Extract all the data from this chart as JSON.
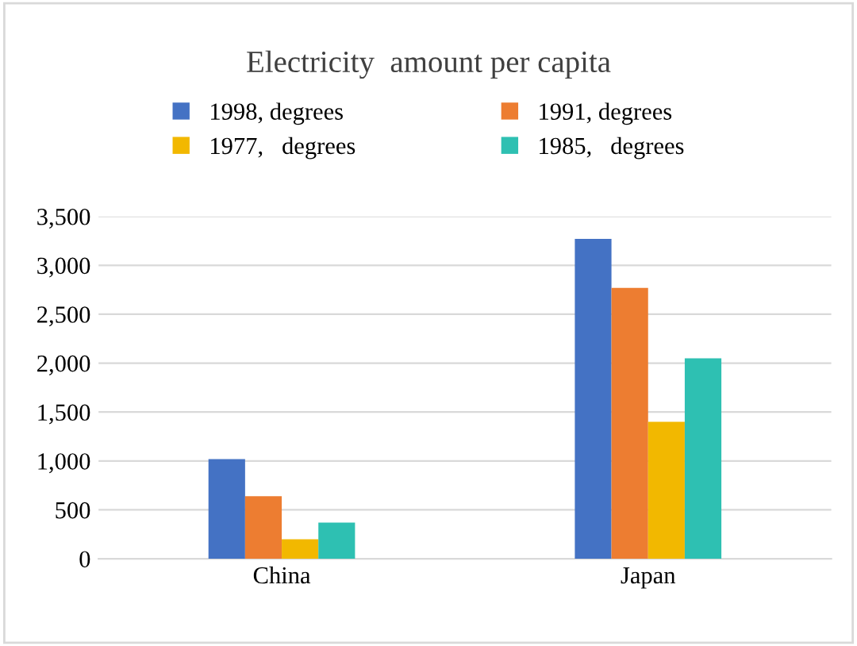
{
  "chart_data": {
    "type": "bar",
    "title": "Electricity  amount per capita",
    "categories": [
      "China",
      "Japan"
    ],
    "series": [
      {
        "name": "1998, degrees",
        "color": "#4472c4",
        "values": [
          1020,
          3270
        ]
      },
      {
        "name": "1991, degrees",
        "color": "#ed7d31",
        "values": [
          640,
          2770
        ]
      },
      {
        "name": "1977,   degrees",
        "color": "#f2b800",
        "values": [
          200,
          1400
        ]
      },
      {
        "name": "1985,   degrees",
        "color": "#2ec0b2",
        "values": [
          370,
          2050
        ]
      }
    ],
    "ylim": [
      0,
      3500
    ],
    "yticks": [
      {
        "value": 0,
        "label": "0"
      },
      {
        "value": 500,
        "label": "500"
      },
      {
        "value": 1000,
        "label": "1,000"
      },
      {
        "value": 1500,
        "label": "1,500"
      },
      {
        "value": 2000,
        "label": "2,000"
      },
      {
        "value": 2500,
        "label": "2,500"
      },
      {
        "value": 3000,
        "label": "3,000"
      },
      {
        "value": 3500,
        "label": "3,500"
      }
    ],
    "grid": "y",
    "legend": "top"
  }
}
